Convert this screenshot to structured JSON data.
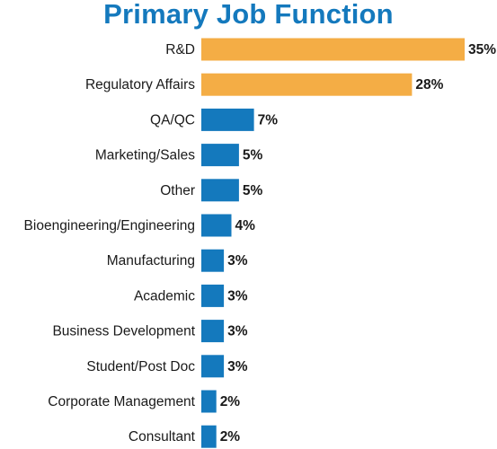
{
  "chart_data": {
    "type": "bar",
    "orientation": "horizontal",
    "title": "Primary Job Function",
    "categories": [
      "R&D",
      "Regulatory Affairs",
      "QA/QC",
      "Marketing/Sales",
      "Other",
      "Bioengineering/Engineering",
      "Manufacturing",
      "Academic",
      "Business Development",
      "Student/Post Doc",
      "Corporate Management",
      "Consultant"
    ],
    "values": [
      35,
      28,
      7,
      5,
      5,
      4,
      3,
      3,
      3,
      3,
      2,
      2
    ],
    "value_labels": [
      "35%",
      "28%",
      "7%",
      "5%",
      "5%",
      "4%",
      "3%",
      "3%",
      "3%",
      "3%",
      "2%",
      "2%"
    ],
    "highlight_count": 2,
    "colors": {
      "highlight": "#f4ad45",
      "default": "#1479bd",
      "title": "#1479bd",
      "text": "#1a1a1a"
    },
    "xlabel": "",
    "ylabel": "",
    "grid": false,
    "legend": "none"
  }
}
